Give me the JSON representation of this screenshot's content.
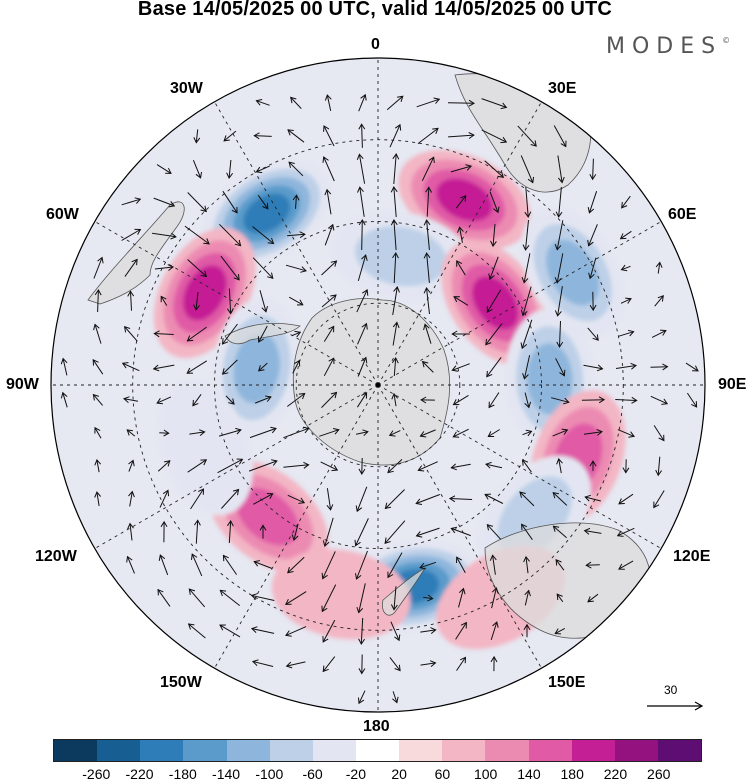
{
  "title": "Base 14/05/2025 00 UTC, valid 14/05/2025 00 UTC",
  "logo": {
    "text": "MODES",
    "mark": "©"
  },
  "longitude_labels": {
    "top": "0",
    "bottom": "180",
    "left": "90W",
    "right": "90E",
    "w30": "30W",
    "e30": "30E",
    "w60": "60W",
    "e60": "60E",
    "w120": "120W",
    "e120": "120E",
    "w150": "150W",
    "e150": "150E"
  },
  "reference_vector": {
    "label": "30"
  },
  "colorbar": {
    "colors": [
      "#0b3a5e",
      "#175f92",
      "#2f7db8",
      "#5a9bcb",
      "#8eb6dc",
      "#bdd0e8",
      "#e3e6f2",
      "#ffffff",
      "#f8d9dc",
      "#f3b6c4",
      "#ec8bb2",
      "#e05aa6",
      "#c51f95",
      "#94127f",
      "#5e0d72"
    ],
    "tick_labels": [
      "-260",
      "-220",
      "-180",
      "-140",
      "-100",
      "-60",
      "-20",
      "20",
      "60",
      "100",
      "140",
      "180",
      "220",
      "260"
    ]
  },
  "map_colors": {
    "land": "#dcdcdc",
    "coast": "#555555",
    "grid": "#222222",
    "vector": "#111111"
  },
  "anomaly_centers": [
    {
      "lon_deg": -33,
      "lat_deg": -40,
      "value": -200
    },
    {
      "lon_deg": -62,
      "lat_deg": -42,
      "value": 170
    },
    {
      "lon_deg": -82,
      "lat_deg": -60,
      "value": -150
    },
    {
      "lon_deg": 25,
      "lat_deg": -40,
      "value": 170
    },
    {
      "lon_deg": 10,
      "lat_deg": -58,
      "value": -110
    },
    {
      "lon_deg": 55,
      "lat_deg": -55,
      "value": 180
    },
    {
      "lon_deg": 60,
      "lat_deg": -35,
      "value": -140
    },
    {
      "lon_deg": 88,
      "lat_deg": -48,
      "value": -150
    },
    {
      "lon_deg": 110,
      "lat_deg": -38,
      "value": 150
    },
    {
      "lon_deg": 130,
      "lat_deg": -40,
      "value": -110
    },
    {
      "lon_deg": 170,
      "lat_deg": -40,
      "value": -220
    },
    {
      "lon_deg": -140,
      "lat_deg": -48,
      "value": 130
    },
    {
      "lon_deg": -170,
      "lat_deg": -38,
      "value": 70
    },
    {
      "lon_deg": -110,
      "lat_deg": -45,
      "value": -50
    },
    {
      "lon_deg": 150,
      "lat_deg": -30,
      "value": 60
    }
  ]
}
